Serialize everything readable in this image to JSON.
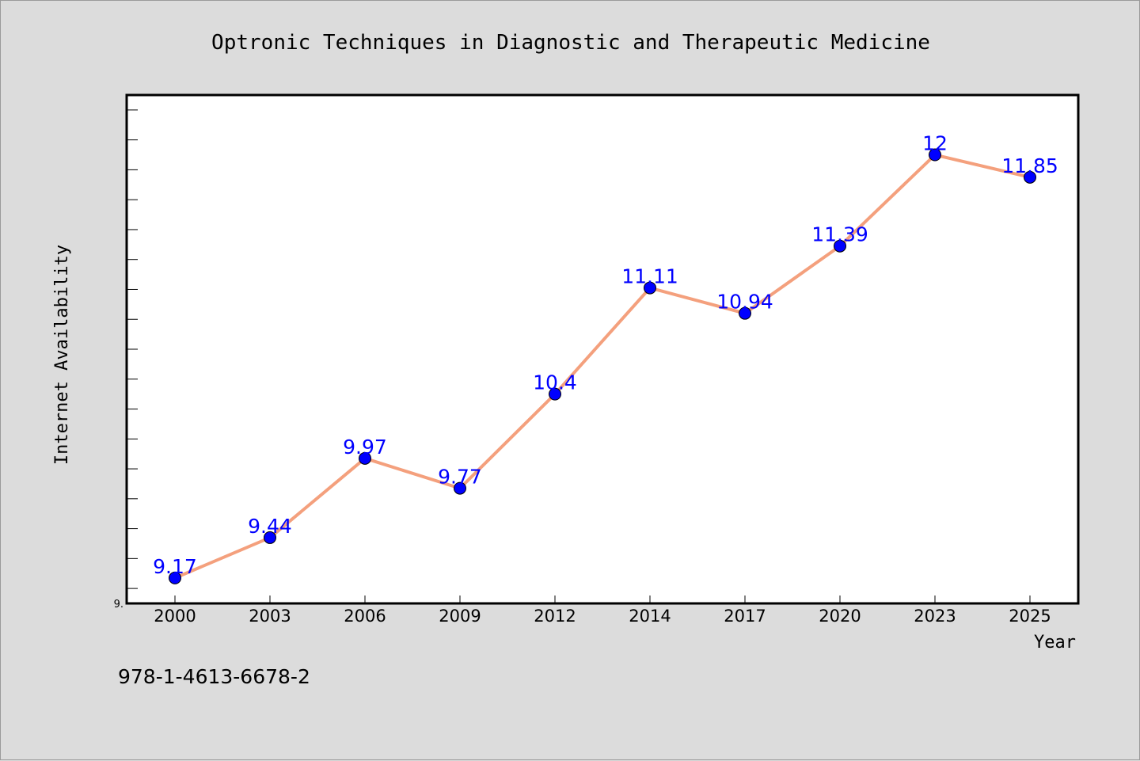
{
  "colors": {
    "background": "#dcdcdc",
    "plot_background": "#ffffff",
    "line": "#f4a07d",
    "marker": "#0000ff",
    "data_label": "#0000ff"
  },
  "footer": {
    "isbn": "978-1-4613-6678-2"
  },
  "chart_data": {
    "type": "line",
    "title": "Optronic Techniques in Diagnostic and Therapeutic Medicine",
    "xlabel": "Year",
    "ylabel": "Internet Availability",
    "categories": [
      "2000",
      "2003",
      "2006",
      "2009",
      "2012",
      "2014",
      "2017",
      "2020",
      "2023",
      "2025"
    ],
    "series": [
      {
        "values": [
          9.17,
          9.44,
          9.97,
          9.77,
          10.4,
          11.11,
          10.94,
          11.39,
          12,
          11.85
        ],
        "data_labels": [
          "9.17",
          "9.44",
          "9.97",
          "9.77",
          "10.4",
          "11.11",
          "10.94",
          "11.39",
          "12",
          "11.85"
        ]
      }
    ],
    "y_tick_labels": [
      "9."
    ],
    "ylim": [
      9.0,
      12.4
    ],
    "grid": false,
    "legend": "none"
  }
}
